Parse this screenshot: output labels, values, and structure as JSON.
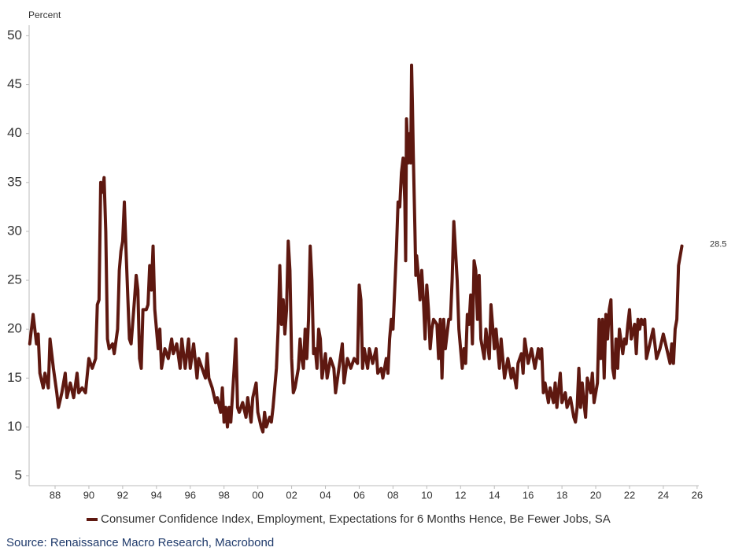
{
  "chart_data": {
    "type": "line",
    "y_label": "Percent",
    "source": "Source: Renaissance Macro Research, Macrobond",
    "xlim": [
      1986.5,
      2026.1
    ],
    "ylim": [
      4,
      51
    ],
    "yticks": [
      5,
      10,
      15,
      20,
      25,
      30,
      35,
      40,
      45,
      50
    ],
    "xticks": [
      {
        "value": 1988,
        "label": "88"
      },
      {
        "value": 1990,
        "label": "90"
      },
      {
        "value": 1992,
        "label": "92"
      },
      {
        "value": 1994,
        "label": "94"
      },
      {
        "value": 1996,
        "label": "96"
      },
      {
        "value": 1998,
        "label": "98"
      },
      {
        "value": 2000,
        "label": "00"
      },
      {
        "value": 2002,
        "label": "02"
      },
      {
        "value": 2004,
        "label": "04"
      },
      {
        "value": 2006,
        "label": "06"
      },
      {
        "value": 2008,
        "label": "08"
      },
      {
        "value": 2010,
        "label": "10"
      },
      {
        "value": 2012,
        "label": "12"
      },
      {
        "value": 2014,
        "label": "14"
      },
      {
        "value": 2016,
        "label": "16"
      },
      {
        "value": 2018,
        "label": "18"
      },
      {
        "value": 2020,
        "label": "20"
      },
      {
        "value": 2022,
        "label": "22"
      },
      {
        "value": 2024,
        "label": "24"
      },
      {
        "value": 2026,
        "label": "26"
      }
    ],
    "x": [
      1986.5,
      1986.7,
      1986.9,
      1987.0,
      1987.1,
      1987.3,
      1987.4,
      1987.6,
      1987.7,
      1987.9,
      1988.1,
      1988.2,
      1988.4,
      1988.6,
      1988.7,
      1988.9,
      1989.1,
      1989.3,
      1989.4,
      1989.6,
      1989.8,
      1990.0,
      1990.2,
      1990.4,
      1990.5,
      1990.6,
      1990.7,
      1990.8,
      1990.9,
      1991.0,
      1991.1,
      1991.2,
      1991.4,
      1991.5,
      1991.7,
      1991.8,
      1991.9,
      1992.0,
      1992.1,
      1992.2,
      1992.4,
      1992.5,
      1992.7,
      1992.8,
      1992.9,
      1993.0,
      1993.1,
      1993.2,
      1993.4,
      1993.5,
      1993.6,
      1993.7,
      1993.8,
      1993.9,
      1994.1,
      1994.2,
      1994.3,
      1994.5,
      1994.7,
      1994.9,
      1995.0,
      1995.2,
      1995.4,
      1995.5,
      1995.7,
      1995.9,
      1996.0,
      1996.2,
      1996.4,
      1996.5,
      1996.7,
      1996.9,
      1997.0,
      1997.1,
      1997.3,
      1997.5,
      1997.6,
      1997.8,
      1997.9,
      1998.0,
      1998.1,
      1998.2,
      1998.3,
      1998.4,
      1998.6,
      1998.7,
      1998.8,
      1998.9,
      1999.1,
      1999.3,
      1999.4,
      1999.6,
      1999.7,
      1999.9,
      2000.0,
      2000.2,
      2000.3,
      2000.4,
      2000.5,
      2000.7,
      2000.8,
      2000.9,
      2001.0,
      2001.1,
      2001.2,
      2001.3,
      2001.4,
      2001.5,
      2001.6,
      2001.7,
      2001.8,
      2001.9,
      2002.0,
      2002.1,
      2002.2,
      2002.4,
      2002.5,
      2002.6,
      2002.7,
      2002.8,
      2002.9,
      2003.0,
      2003.1,
      2003.2,
      2003.3,
      2003.4,
      2003.5,
      2003.6,
      2003.7,
      2003.8,
      2004.0,
      2004.1,
      2004.3,
      2004.5,
      2004.6,
      2004.8,
      2005.0,
      2005.1,
      2005.3,
      2005.5,
      2005.7,
      2005.9,
      2006.0,
      2006.1,
      2006.2,
      2006.3,
      2006.5,
      2006.6,
      2006.8,
      2007.0,
      2007.1,
      2007.3,
      2007.4,
      2007.6,
      2007.7,
      2007.8,
      2007.9,
      2008.0,
      2008.1,
      2008.2,
      2008.3,
      2008.4,
      2008.5,
      2008.6,
      2008.7,
      2008.75,
      2008.8,
      2008.9,
      2009.0,
      2009.05,
      2009.1,
      2009.15,
      2009.2,
      2009.3,
      2009.35,
      2009.4,
      2009.5,
      2009.6,
      2009.7,
      2009.8,
      2009.9,
      2010.0,
      2010.1,
      2010.2,
      2010.3,
      2010.4,
      2010.6,
      2010.7,
      2010.8,
      2010.9,
      2011.0,
      2011.1,
      2011.3,
      2011.4,
      2011.5,
      2011.6,
      2011.7,
      2011.8,
      2011.9,
      2012.1,
      2012.2,
      2012.3,
      2012.4,
      2012.5,
      2012.6,
      2012.7,
      2012.8,
      2012.9,
      2013.0,
      2013.1,
      2013.2,
      2013.4,
      2013.5,
      2013.7,
      2013.8,
      2014.0,
      2014.1,
      2014.3,
      2014.4,
      2014.6,
      2014.8,
      2015.0,
      2015.1,
      2015.3,
      2015.4,
      2015.6,
      2015.7,
      2015.8,
      2016.0,
      2016.2,
      2016.4,
      2016.6,
      2016.7,
      2016.8,
      2016.9,
      2017.0,
      2017.2,
      2017.3,
      2017.5,
      2017.6,
      2017.7,
      2017.9,
      2018.0,
      2018.2,
      2018.3,
      2018.5,
      2018.7,
      2018.8,
      2018.9,
      2019.0,
      2019.1,
      2019.2,
      2019.3,
      2019.4,
      2019.5,
      2019.7,
      2019.8,
      2019.9,
      2020.1,
      2020.2,
      2020.3,
      2020.4,
      2020.5,
      2020.6,
      2020.7,
      2020.8,
      2020.9,
      2021.0,
      2021.1,
      2021.2,
      2021.3,
      2021.4,
      2021.6,
      2021.7,
      2021.8,
      2021.9,
      2022.0,
      2022.1,
      2022.3,
      2022.4,
      2022.5,
      2022.6,
      2022.7,
      2022.8,
      2022.9,
      2023.0,
      2023.2,
      2023.4,
      2023.6,
      2023.8,
      2024.0,
      2024.2,
      2024.4,
      2024.5,
      2024.6,
      2024.7,
      2024.8,
      2024.9,
      2025.1
    ],
    "series": [
      {
        "name": "Consumer Confidence Index, Employment, Expectations for 6 Months Hence, Be Fewer Jobs, SA",
        "color": "#5e1810",
        "values": [
          18.5,
          21.5,
          18.5,
          19.5,
          15.5,
          14,
          15.5,
          14,
          19,
          16,
          13.5,
          12,
          13.5,
          15.5,
          13,
          14.5,
          13,
          15.5,
          13.5,
          14,
          13.5,
          17,
          16,
          17,
          22.5,
          23,
          35,
          34,
          35.5,
          30,
          19,
          18,
          18.5,
          17.5,
          20,
          26,
          28,
          29,
          33,
          28,
          19,
          18.5,
          23,
          25.5,
          24,
          17,
          16,
          22,
          22,
          22.5,
          26.5,
          24,
          28.5,
          22,
          18,
          20,
          16,
          18,
          17,
          19,
          17.5,
          18.5,
          16,
          19,
          16,
          19,
          16,
          18.5,
          15,
          17,
          16,
          15,
          17.5,
          15,
          14,
          12.5,
          13,
          11.5,
          14,
          10.5,
          12,
          10,
          12,
          10.5,
          16,
          19,
          12,
          11.5,
          12.5,
          11,
          13,
          10.5,
          13,
          14.5,
          11.5,
          10,
          9.5,
          11.5,
          10,
          11,
          10.5,
          12,
          14,
          16,
          20,
          26.5,
          20.5,
          23,
          19.5,
          22,
          29,
          26,
          17,
          13.5,
          14,
          16,
          19,
          17,
          16,
          20,
          17,
          21,
          28.5,
          25,
          17.5,
          18,
          16,
          20,
          19,
          15,
          17.5,
          15,
          17,
          16,
          13.5,
          16,
          18.5,
          14.5,
          17,
          16,
          17,
          16.5,
          24.5,
          23,
          16,
          18,
          16,
          18,
          16.5,
          18,
          15.5,
          16,
          15,
          17,
          15.5,
          19,
          21,
          20,
          24,
          28,
          33,
          32.5,
          36,
          37.5,
          33,
          27,
          41.5,
          37,
          40,
          37,
          47,
          43,
          38,
          30,
          25.5,
          27.5,
          25.5,
          23,
          26,
          23,
          19,
          24.5,
          22,
          18,
          20,
          21,
          20.5,
          17,
          21,
          15,
          21,
          18,
          21,
          21,
          25,
          31,
          28,
          25,
          20,
          16,
          18,
          16.5,
          21.5,
          20.5,
          23.5,
          18.5,
          27,
          26,
          21,
          25.5,
          19,
          17,
          20,
          17,
          22.5,
          18,
          20,
          16,
          19,
          15,
          17,
          15,
          16,
          14,
          16.5,
          17.5,
          15.5,
          19,
          16.5,
          18,
          16,
          18,
          17,
          18,
          13.5,
          14.5,
          12.5,
          14,
          12.5,
          14.5,
          12,
          15.5,
          12.5,
          13.5,
          12,
          13,
          11,
          10.5,
          12,
          16,
          12,
          14.5,
          12.5,
          11,
          15,
          13.5,
          15.5,
          12.5,
          14.5,
          21,
          17,
          21,
          15,
          21.5,
          19,
          22,
          23,
          16,
          15,
          19,
          16,
          20,
          17.5,
          19,
          18.5,
          20.5,
          22,
          19,
          20.5,
          17.5,
          21,
          20,
          21,
          20.5,
          21,
          17,
          18.5,
          20,
          17,
          18,
          19.5,
          18,
          16.5,
          18.5,
          16.5,
          20,
          21,
          26.5,
          28.5
        ]
      }
    ]
  }
}
